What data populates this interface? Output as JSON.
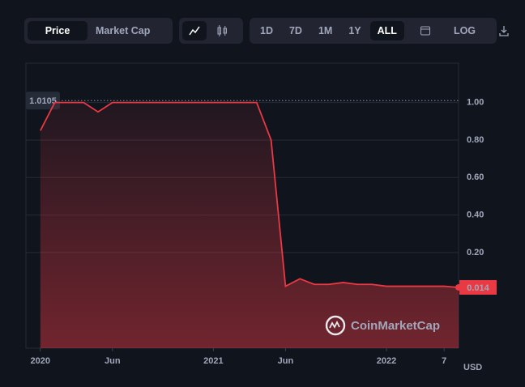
{
  "toolbar": {
    "tabs": [
      "Price",
      "Market Cap"
    ],
    "ranges": [
      "1D",
      "7D",
      "1M",
      "1Y",
      "ALL"
    ],
    "scale": "LOG"
  },
  "currency": "USD",
  "watermark": "CoinMarketCap",
  "chart_data": {
    "type": "line",
    "x": [
      "2020-01",
      "2020-02",
      "2020-03",
      "2020-04",
      "2020-05",
      "2020-06",
      "2020-07",
      "2020-08",
      "2020-09",
      "2020-10",
      "2020-11",
      "2020-12",
      "2021-01",
      "2021-02",
      "2021-03",
      "2021-04",
      "2021-05",
      "2021-06",
      "2021-07",
      "2021-08",
      "2021-09",
      "2021-10",
      "2021-11",
      "2021-12",
      "2022-01",
      "2022-02",
      "2022-03",
      "2022-04",
      "2022-05",
      "2022-06"
    ],
    "values": [
      0.85,
      1.0,
      1.0,
      1.0,
      0.95,
      1.0,
      1.0,
      1.0,
      1.0,
      1.0,
      1.0,
      1.0,
      1.0,
      1.0,
      1.0,
      1.0,
      0.8,
      0.02,
      0.06,
      0.03,
      0.03,
      0.04,
      0.03,
      0.03,
      0.02,
      0.02,
      0.02,
      0.02,
      0.02,
      0.014
    ],
    "color": "#ea3943",
    "reference_line": 1.0105,
    "last_value_label": "0.014",
    "xlim": [
      "2019-12",
      "2022-06"
    ],
    "xticks": [
      {
        "value": "2020-01",
        "label": "2020"
      },
      {
        "value": "2020-06",
        "label": "Jun"
      },
      {
        "value": "2021-01",
        "label": "2021"
      },
      {
        "value": "2021-06",
        "label": "Jun"
      },
      {
        "value": "2022-01",
        "label": "2022"
      },
      {
        "value": "2022-05",
        "label": "7"
      }
    ],
    "ylim": [
      -0.31,
      1.21
    ],
    "yticks": [
      {
        "value": 0.2,
        "label": "0.20"
      },
      {
        "value": 0.4,
        "label": "0.40"
      },
      {
        "value": 0.6,
        "label": "0.60"
      },
      {
        "value": 0.8,
        "label": "0.80"
      },
      {
        "value": 1,
        "label": "1.00"
      }
    ],
    "grid": true
  }
}
